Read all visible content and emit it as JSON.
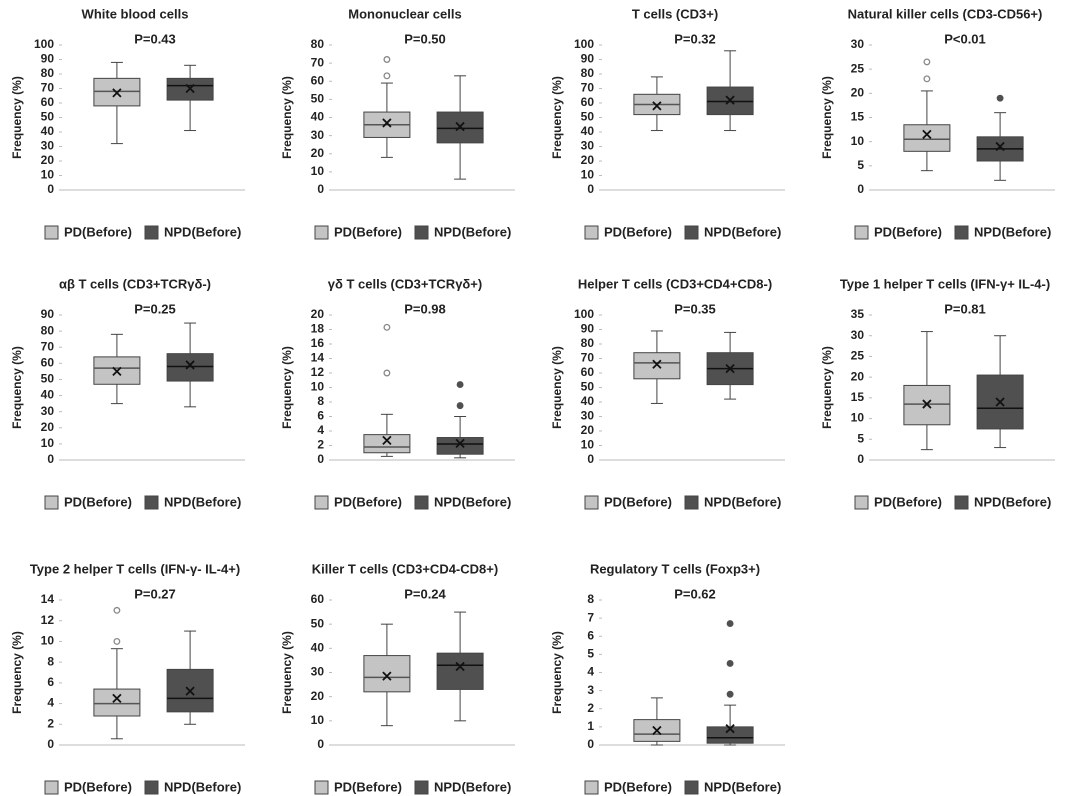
{
  "chart_data": [
    {
      "type": "box",
      "title": "White blood cells",
      "subtitle": "P=0.43",
      "ylabel": "Frequency (%)",
      "ylim": [
        0,
        100
      ],
      "yticks": [
        0,
        10,
        20,
        30,
        40,
        50,
        60,
        70,
        80,
        90,
        100
      ],
      "series": [
        {
          "name": "PD(Before)",
          "color": "#c4c4c4",
          "min": 32,
          "q1": 58,
          "median": 68,
          "q3": 77,
          "max": 88,
          "mean": 67,
          "outliers": []
        },
        {
          "name": "NPD(Before)",
          "color": "#505050",
          "min": 41,
          "q1": 62,
          "median": 72,
          "q3": 77,
          "max": 86,
          "mean": 70,
          "outliers": []
        }
      ]
    },
    {
      "type": "box",
      "title": "Mononuclear cells",
      "subtitle": "P=0.50",
      "ylabel": "Frequency (%)",
      "ylim": [
        0,
        80
      ],
      "yticks": [
        0,
        10,
        20,
        30,
        40,
        50,
        60,
        70,
        80
      ],
      "series": [
        {
          "name": "PD(Before)",
          "color": "#c4c4c4",
          "min": 18,
          "q1": 29,
          "median": 36,
          "q3": 43,
          "max": 59,
          "mean": 37,
          "outliers": [
            63,
            72
          ]
        },
        {
          "name": "NPD(Before)",
          "color": "#505050",
          "min": 6,
          "q1": 26,
          "median": 34,
          "q3": 43,
          "max": 63,
          "mean": 35,
          "outliers": []
        }
      ]
    },
    {
      "type": "box",
      "title": "T cells (CD3+)",
      "subtitle": "P=0.32",
      "ylabel": "Frequency (%)",
      "ylim": [
        0,
        100
      ],
      "yticks": [
        0,
        10,
        20,
        30,
        40,
        50,
        60,
        70,
        80,
        90,
        100
      ],
      "series": [
        {
          "name": "PD(Before)",
          "color": "#c4c4c4",
          "min": 41,
          "q1": 52,
          "median": 59,
          "q3": 66,
          "max": 78,
          "mean": 58,
          "outliers": []
        },
        {
          "name": "NPD(Before)",
          "color": "#505050",
          "min": 41,
          "q1": 52,
          "median": 61,
          "q3": 71,
          "max": 96,
          "mean": 62,
          "outliers": []
        }
      ]
    },
    {
      "type": "box",
      "title": "Natural killer cells (CD3-CD56+)",
      "subtitle": "P<0.01",
      "ylabel": "Frequency (%)",
      "ylim": [
        0,
        30
      ],
      "yticks": [
        0,
        5,
        10,
        15,
        20,
        25,
        30
      ],
      "series": [
        {
          "name": "PD(Before)",
          "color": "#c4c4c4",
          "min": 4,
          "q1": 8,
          "median": 10.5,
          "q3": 13.5,
          "max": 20.5,
          "mean": 11.5,
          "outliers": [
            23,
            26.5
          ]
        },
        {
          "name": "NPD(Before)",
          "color": "#505050",
          "min": 2,
          "q1": 6,
          "median": 8.5,
          "q3": 11,
          "max": 16,
          "mean": 9,
          "outliers": [
            19
          ]
        }
      ]
    },
    {
      "type": "box",
      "title": "αβ T cells (CD3+TCRγδ-)",
      "subtitle": "P=0.25",
      "ylabel": "Frequency (%)",
      "ylim": [
        0,
        90
      ],
      "yticks": [
        0,
        10,
        20,
        30,
        40,
        50,
        60,
        70,
        80,
        90
      ],
      "series": [
        {
          "name": "PD(Before)",
          "color": "#c4c4c4",
          "min": 35,
          "q1": 47,
          "median": 57,
          "q3": 64,
          "max": 78,
          "mean": 55,
          "outliers": []
        },
        {
          "name": "NPD(Before)",
          "color": "#505050",
          "min": 33,
          "q1": 49,
          "median": 58,
          "q3": 66,
          "max": 85,
          "mean": 59,
          "outliers": []
        }
      ]
    },
    {
      "type": "box",
      "title": "γδ T cells (CD3+TCRγδ+)",
      "subtitle": "P=0.98",
      "ylabel": "Frequency (%)",
      "ylim": [
        0,
        20
      ],
      "yticks": [
        0,
        2,
        4,
        6,
        8,
        10,
        12,
        14,
        16,
        18,
        20
      ],
      "series": [
        {
          "name": "PD(Before)",
          "color": "#c4c4c4",
          "min": 0.5,
          "q1": 1,
          "median": 1.8,
          "q3": 3.5,
          "max": 6.3,
          "mean": 2.7,
          "outliers": [
            12,
            18.3
          ]
        },
        {
          "name": "NPD(Before)",
          "color": "#505050",
          "min": 0.3,
          "q1": 0.8,
          "median": 2.2,
          "q3": 3.1,
          "max": 6,
          "mean": 2.3,
          "outliers": [
            7.5,
            10.4
          ]
        }
      ]
    },
    {
      "type": "box",
      "title": "Helper T cells (CD3+CD4+CD8-)",
      "subtitle": "P=0.35",
      "ylabel": "Frequency (%)",
      "ylim": [
        0,
        100
      ],
      "yticks": [
        0,
        10,
        20,
        30,
        40,
        50,
        60,
        70,
        80,
        90,
        100
      ],
      "series": [
        {
          "name": "PD(Before)",
          "color": "#c4c4c4",
          "min": 39,
          "q1": 56,
          "median": 67,
          "q3": 74,
          "max": 89,
          "mean": 66,
          "outliers": []
        },
        {
          "name": "NPD(Before)",
          "color": "#505050",
          "min": 42,
          "q1": 52,
          "median": 63,
          "q3": 74,
          "max": 88,
          "mean": 63,
          "outliers": []
        }
      ]
    },
    {
      "type": "box",
      "title": "Type 1 helper T cells (IFN-γ+ IL-4-)",
      "subtitle": "P=0.81",
      "ylabel": "Frequency (%)",
      "ylim": [
        0,
        35
      ],
      "yticks": [
        0,
        5,
        10,
        15,
        20,
        25,
        30,
        35
      ],
      "series": [
        {
          "name": "PD(Before)",
          "color": "#c4c4c4",
          "min": 2.5,
          "q1": 8.5,
          "median": 13.5,
          "q3": 18,
          "max": 31,
          "mean": 13.5,
          "outliers": []
        },
        {
          "name": "NPD(Before)",
          "color": "#505050",
          "min": 3,
          "q1": 7.5,
          "median": 12.5,
          "q3": 20.5,
          "max": 30,
          "mean": 14,
          "outliers": []
        }
      ]
    },
    {
      "type": "box",
      "title": "Type 2 helper T cells (IFN-γ- IL-4+)",
      "subtitle": "P=0.27",
      "ylabel": "Frequency (%)",
      "ylim": [
        0,
        14
      ],
      "yticks": [
        0,
        2,
        4,
        6,
        8,
        10,
        12,
        14
      ],
      "series": [
        {
          "name": "PD(Before)",
          "color": "#c4c4c4",
          "min": 0.6,
          "q1": 2.8,
          "median": 4,
          "q3": 5.4,
          "max": 9.3,
          "mean": 4.5,
          "outliers": [
            10,
            13
          ]
        },
        {
          "name": "NPD(Before)",
          "color": "#505050",
          "min": 2,
          "q1": 3.2,
          "median": 4.5,
          "q3": 7.3,
          "max": 11,
          "mean": 5.2,
          "outliers": []
        }
      ]
    },
    {
      "type": "box",
      "title": "Killer T cells (CD3+CD4-CD8+)",
      "subtitle": "P=0.24",
      "ylabel": "Frequency (%)",
      "ylim": [
        0,
        60
      ],
      "yticks": [
        0,
        10,
        20,
        30,
        40,
        50,
        60
      ],
      "series": [
        {
          "name": "PD(Before)",
          "color": "#c4c4c4",
          "min": 8,
          "q1": 22,
          "median": 28,
          "q3": 37,
          "max": 50,
          "mean": 28.5,
          "outliers": []
        },
        {
          "name": "NPD(Before)",
          "color": "#505050",
          "min": 10,
          "q1": 23,
          "median": 33,
          "q3": 38,
          "max": 55,
          "mean": 32.5,
          "outliers": []
        }
      ]
    },
    {
      "type": "box",
      "title": "Regulatory T cells (Foxp3+)",
      "subtitle": "P=0.62",
      "ylabel": "Frequency (%)",
      "ylim": [
        0,
        8
      ],
      "yticks": [
        0,
        1,
        2,
        3,
        4,
        5,
        6,
        7,
        8
      ],
      "series": [
        {
          "name": "PD(Before)",
          "color": "#c4c4c4",
          "min": 0,
          "q1": 0.2,
          "median": 0.6,
          "q3": 1.4,
          "max": 2.6,
          "mean": 0.8,
          "outliers": []
        },
        {
          "name": "NPD(Before)",
          "color": "#505050",
          "min": 0,
          "q1": 0.1,
          "median": 0.4,
          "q3": 1,
          "max": 2.2,
          "mean": 0.9,
          "outliers": [
            2.8,
            4.5,
            6.7
          ]
        }
      ]
    }
  ]
}
